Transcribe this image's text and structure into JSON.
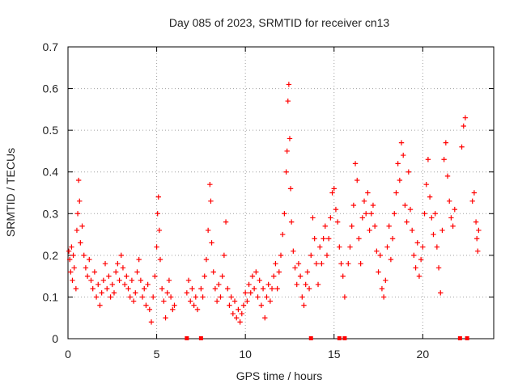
{
  "chart_data": {
    "type": "scatter",
    "title": "Day 085 of 2023, SRMTID for receiver cn13",
    "xlabel": "GPS time / hours",
    "ylabel": "SRMTID / TECUs",
    "xlim": [
      0,
      24
    ],
    "ylim": [
      0,
      0.7
    ],
    "xticks": [
      0,
      5,
      10,
      15,
      20
    ],
    "yticks": [
      0,
      0.1,
      0.2,
      0.3,
      0.4,
      0.5,
      0.6,
      0.7
    ],
    "xtick_labels": [
      "0",
      "5",
      "10",
      "15",
      "20"
    ],
    "ytick_labels": [
      "0",
      "0.1",
      "0.2",
      "0.3",
      "0.4",
      "0.5",
      "0.6",
      "0.7"
    ],
    "grid": true,
    "marker": "+",
    "color": "#ff0000",
    "series": [
      {
        "name": "cn13",
        "points": [
          [
            0.05,
            0.21
          ],
          [
            0.1,
            0.19
          ],
          [
            0.15,
            0.16
          ],
          [
            0.2,
            0.22
          ],
          [
            0.25,
            0.14
          ],
          [
            0.3,
            0.2
          ],
          [
            0.35,
            0.17
          ],
          [
            0.45,
            0.12
          ],
          [
            0.5,
            0.26
          ],
          [
            0.55,
            0.3
          ],
          [
            0.6,
            0.38
          ],
          [
            0.65,
            0.33
          ],
          [
            0.7,
            0.23
          ],
          [
            0.8,
            0.27
          ],
          [
            0.9,
            0.2
          ],
          [
            1.0,
            0.17
          ],
          [
            1.1,
            0.15
          ],
          [
            1.2,
            0.19
          ],
          [
            1.3,
            0.14
          ],
          [
            1.4,
            0.12
          ],
          [
            1.5,
            0.16
          ],
          [
            1.6,
            0.1
          ],
          [
            1.7,
            0.13
          ],
          [
            1.8,
            0.08
          ],
          [
            1.9,
            0.11
          ],
          [
            2.0,
            0.14
          ],
          [
            2.1,
            0.18
          ],
          [
            2.2,
            0.12
          ],
          [
            2.3,
            0.15
          ],
          [
            2.4,
            0.1
          ],
          [
            2.5,
            0.13
          ],
          [
            2.6,
            0.11
          ],
          [
            2.7,
            0.16
          ],
          [
            2.8,
            0.18
          ],
          [
            2.9,
            0.14
          ],
          [
            3.0,
            0.2
          ],
          [
            3.1,
            0.17
          ],
          [
            3.2,
            0.13
          ],
          [
            3.3,
            0.15
          ],
          [
            3.4,
            0.12
          ],
          [
            3.5,
            0.1
          ],
          [
            3.6,
            0.14
          ],
          [
            3.7,
            0.09
          ],
          [
            3.8,
            0.11
          ],
          [
            3.9,
            0.16
          ],
          [
            4.0,
            0.19
          ],
          [
            4.1,
            0.14
          ],
          [
            4.2,
            0.1
          ],
          [
            4.3,
            0.12
          ],
          [
            4.4,
            0.08
          ],
          [
            4.5,
            0.13
          ],
          [
            4.6,
            0.07
          ],
          [
            4.7,
            0.04
          ],
          [
            4.8,
            0.1
          ],
          [
            4.9,
            0.15
          ],
          [
            5.0,
            0.22
          ],
          [
            5.05,
            0.3
          ],
          [
            5.1,
            0.34
          ],
          [
            5.15,
            0.26
          ],
          [
            5.2,
            0.19
          ],
          [
            5.3,
            0.12
          ],
          [
            5.4,
            0.09
          ],
          [
            5.5,
            0.05
          ],
          [
            5.6,
            0.11
          ],
          [
            5.7,
            0.14
          ],
          [
            5.8,
            0.1
          ],
          [
            5.9,
            0.07
          ],
          [
            6.0,
            0.08
          ],
          [
            6.7,
            0.11
          ],
          [
            6.8,
            0.14
          ],
          [
            6.9,
            0.09
          ],
          [
            7.0,
            0.12
          ],
          [
            7.1,
            0.08
          ],
          [
            7.2,
            0.1
          ],
          [
            7.3,
            0.07
          ],
          [
            7.5,
            0.12
          ],
          [
            7.6,
            0.1
          ],
          [
            7.7,
            0.15
          ],
          [
            7.8,
            0.19
          ],
          [
            7.9,
            0.26
          ],
          [
            8.0,
            0.37
          ],
          [
            8.05,
            0.33
          ],
          [
            8.1,
            0.23
          ],
          [
            8.2,
            0.16
          ],
          [
            8.3,
            0.12
          ],
          [
            8.4,
            0.09
          ],
          [
            8.5,
            0.13
          ],
          [
            8.6,
            0.1
          ],
          [
            8.7,
            0.15
          ],
          [
            8.8,
            0.2
          ],
          [
            8.9,
            0.28
          ],
          [
            9.0,
            0.12
          ],
          [
            9.1,
            0.08
          ],
          [
            9.2,
            0.1
          ],
          [
            9.3,
            0.06
          ],
          [
            9.4,
            0.09
          ],
          [
            9.5,
            0.05
          ],
          [
            9.6,
            0.07
          ],
          [
            9.7,
            0.04
          ],
          [
            9.8,
            0.06
          ],
          [
            9.9,
            0.08
          ],
          [
            10.0,
            0.11
          ],
          [
            10.1,
            0.09
          ],
          [
            10.2,
            0.13
          ],
          [
            10.3,
            0.11
          ],
          [
            10.4,
            0.15
          ],
          [
            10.5,
            0.12
          ],
          [
            10.6,
            0.16
          ],
          [
            10.7,
            0.1
          ],
          [
            10.8,
            0.14
          ],
          [
            10.9,
            0.08
          ],
          [
            11.0,
            0.12
          ],
          [
            11.1,
            0.05
          ],
          [
            11.2,
            0.1
          ],
          [
            11.3,
            0.13
          ],
          [
            11.4,
            0.09
          ],
          [
            11.5,
            0.12
          ],
          [
            11.6,
            0.15
          ],
          [
            11.7,
            0.18
          ],
          [
            11.8,
            0.12
          ],
          [
            11.9,
            0.16
          ],
          [
            12.0,
            0.2
          ],
          [
            12.1,
            0.25
          ],
          [
            12.2,
            0.3
          ],
          [
            12.3,
            0.4
          ],
          [
            12.35,
            0.45
          ],
          [
            12.4,
            0.57
          ],
          [
            12.45,
            0.61
          ],
          [
            12.5,
            0.48
          ],
          [
            12.55,
            0.36
          ],
          [
            12.6,
            0.28
          ],
          [
            12.7,
            0.21
          ],
          [
            12.8,
            0.17
          ],
          [
            12.9,
            0.13
          ],
          [
            13.0,
            0.18
          ],
          [
            13.1,
            0.15
          ],
          [
            13.2,
            0.1
          ],
          [
            13.3,
            0.08
          ],
          [
            13.4,
            0.13
          ],
          [
            13.5,
            0.16
          ],
          [
            13.6,
            0.12
          ],
          [
            13.7,
            0.2
          ],
          [
            13.8,
            0.29
          ],
          [
            13.9,
            0.24
          ],
          [
            14.0,
            0.18
          ],
          [
            14.1,
            0.13
          ],
          [
            14.2,
            0.22
          ],
          [
            14.3,
            0.18
          ],
          [
            14.4,
            0.24
          ],
          [
            14.5,
            0.27
          ],
          [
            14.6,
            0.2
          ],
          [
            14.7,
            0.24
          ],
          [
            14.8,
            0.29
          ],
          [
            14.9,
            0.35
          ],
          [
            15.0,
            0.36
          ],
          [
            15.1,
            0.31
          ],
          [
            15.2,
            0.28
          ],
          [
            15.3,
            0.22
          ],
          [
            15.4,
            0.18
          ],
          [
            15.5,
            0.15
          ],
          [
            15.6,
            0.1
          ],
          [
            15.8,
            0.18
          ],
          [
            15.9,
            0.22
          ],
          [
            16.0,
            0.27
          ],
          [
            16.1,
            0.32
          ],
          [
            16.2,
            0.42
          ],
          [
            16.3,
            0.38
          ],
          [
            16.4,
            0.24
          ],
          [
            16.5,
            0.18
          ],
          [
            16.6,
            0.29
          ],
          [
            16.7,
            0.33
          ],
          [
            16.8,
            0.3
          ],
          [
            16.9,
            0.35
          ],
          [
            17.0,
            0.26
          ],
          [
            17.1,
            0.3
          ],
          [
            17.2,
            0.32
          ],
          [
            17.3,
            0.27
          ],
          [
            17.4,
            0.21
          ],
          [
            17.5,
            0.16
          ],
          [
            17.6,
            0.2
          ],
          [
            17.7,
            0.12
          ],
          [
            17.8,
            0.1
          ],
          [
            17.9,
            0.14
          ],
          [
            18.0,
            0.22
          ],
          [
            18.1,
            0.27
          ],
          [
            18.2,
            0.19
          ],
          [
            18.3,
            0.24
          ],
          [
            18.4,
            0.3
          ],
          [
            18.5,
            0.35
          ],
          [
            18.6,
            0.42
          ],
          [
            18.7,
            0.38
          ],
          [
            18.8,
            0.47
          ],
          [
            18.9,
            0.44
          ],
          [
            19.0,
            0.32
          ],
          [
            19.1,
            0.28
          ],
          [
            19.2,
            0.4
          ],
          [
            19.3,
            0.31
          ],
          [
            19.4,
            0.26
          ],
          [
            19.5,
            0.2
          ],
          [
            19.6,
            0.17
          ],
          [
            19.7,
            0.23
          ],
          [
            19.8,
            0.15
          ],
          [
            19.9,
            0.19
          ],
          [
            20.0,
            0.22
          ],
          [
            20.1,
            0.3
          ],
          [
            20.2,
            0.37
          ],
          [
            20.3,
            0.43
          ],
          [
            20.4,
            0.34
          ],
          [
            20.5,
            0.29
          ],
          [
            20.6,
            0.25
          ],
          [
            20.7,
            0.3
          ],
          [
            20.8,
            0.22
          ],
          [
            20.9,
            0.17
          ],
          [
            21.0,
            0.11
          ],
          [
            21.1,
            0.26
          ],
          [
            21.2,
            0.43
          ],
          [
            21.3,
            0.47
          ],
          [
            21.4,
            0.39
          ],
          [
            21.5,
            0.33
          ],
          [
            21.6,
            0.29
          ],
          [
            21.7,
            0.27
          ],
          [
            21.8,
            0.31
          ],
          [
            22.2,
            0.46
          ],
          [
            22.3,
            0.51
          ],
          [
            22.4,
            0.53
          ],
          [
            22.8,
            0.33
          ],
          [
            22.9,
            0.35
          ],
          [
            23.0,
            0.28
          ],
          [
            23.05,
            0.24
          ],
          [
            23.1,
            0.21
          ],
          [
            23.15,
            0.26
          ]
        ]
      }
    ],
    "zero_markers_x": [
      6.7,
      7.5,
      13.7,
      15.3,
      15.6,
      22.1,
      22.5
    ]
  }
}
